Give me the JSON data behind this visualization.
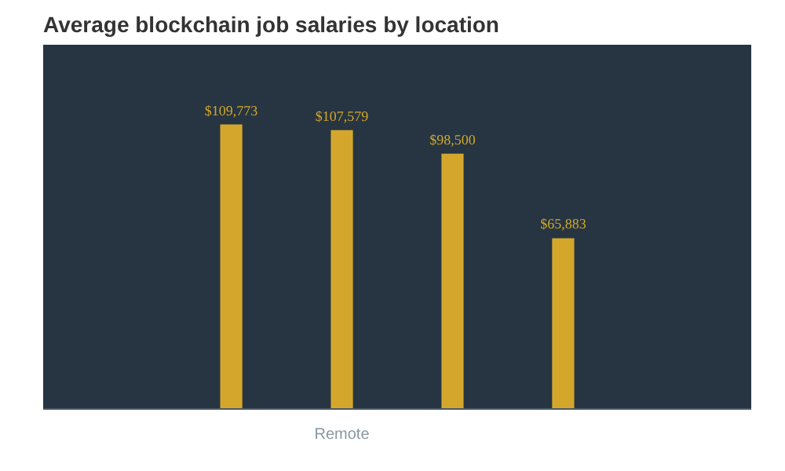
{
  "chart_data": {
    "type": "bar",
    "title": "Average blockchain job salaries by location",
    "categories": [
      null,
      "Remote",
      null,
      null
    ],
    "values": [
      109773,
      107579,
      98500,
      65883
    ],
    "value_labels": [
      "$109,773",
      "$107,579",
      "$98,500",
      "$65,883"
    ],
    "color": "#d4a72c",
    "grid": false
  }
}
